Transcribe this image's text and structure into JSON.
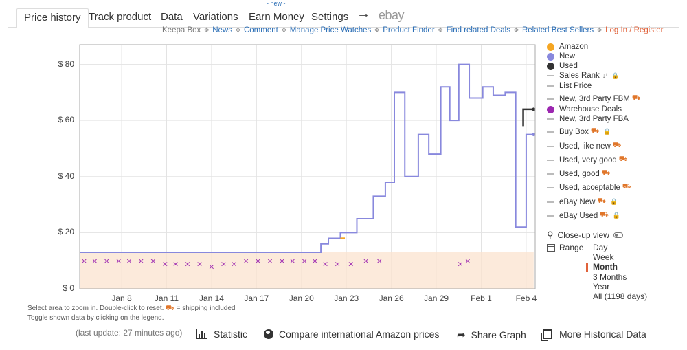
{
  "tabs": {
    "price_history": "Price history",
    "track_product": "Track product",
    "data": "Data",
    "variations": "Variations",
    "earn_money": "Earn Money",
    "new_badge": "- new -",
    "settings": "Settings",
    "ebay": "ebay"
  },
  "subnav": {
    "keepa_box": "Keepa Box",
    "news": "News",
    "comment": "Comment",
    "manage_price_watches": "Manage Price Watches",
    "product_finder": "Product Finder",
    "find_related_deals": "Find related Deals",
    "related_best_sellers": "Related Best Sellers",
    "login": "Log In / Register"
  },
  "legend": {
    "amazon": "Amazon",
    "new": "New",
    "used": "Used",
    "sales_rank": "Sales Rank",
    "list_price": "List Price",
    "new_3p_fbm": "New, 3rd Party FBM",
    "warehouse_deals": "Warehouse Deals",
    "new_3p_fba": "New, 3rd Party FBA",
    "buy_box": "Buy Box",
    "used_like_new": "Used, like new",
    "used_very_good": "Used, very good",
    "used_good": "Used, good",
    "used_acceptable": "Used, acceptable",
    "ebay_new": "eBay New",
    "ebay_used": "eBay Used",
    "colors": {
      "amazon": "#f5a623",
      "new": "#8888dd",
      "used": "#333333",
      "warehouse": "#9c27b0"
    }
  },
  "closeup": "Close-up view",
  "range": {
    "label": "Range",
    "options": [
      "Day",
      "Week",
      "Month",
      "3 Months",
      "Year",
      "All (1198 days)"
    ],
    "selected": "Month"
  },
  "hints": {
    "line1_a": "Select area to zoom in. Double-click to reset.",
    "line1_b": "= shipping included",
    "line2": "Toggle shown data by clicking on the legend."
  },
  "bottom": {
    "last_update": "(last update: 27 minutes ago)",
    "statistic": "Statistic",
    "compare": "Compare international Amazon prices",
    "share": "Share Graph",
    "more": "More Historical Data"
  },
  "chart_data": {
    "type": "line",
    "y_tick_labels": [
      "$ 80",
      "$ 60",
      "$ 40",
      "$ 20",
      "$ 0"
    ],
    "y_ticks": [
      80,
      60,
      40,
      20,
      0
    ],
    "ylim": [
      0,
      87
    ],
    "x_tick_labels": [
      "Jan 8",
      "Jan 11",
      "Jan 14",
      "Jan 17",
      "Jan 20",
      "Jan 23",
      "Jan 26",
      "Jan 29",
      "Feb 1",
      "Feb 4"
    ],
    "x_ticks": [
      8,
      11,
      14,
      17,
      20,
      23,
      26,
      29,
      32,
      35
    ],
    "xlim": [
      5.2,
      35.6
    ],
    "grid": true,
    "legend_placement": "right",
    "series": [
      {
        "name": "New",
        "color": "#8888dd",
        "x": [
          5.2,
          21.3,
          21.3,
          21.8,
          21.8,
          22.6,
          22.6,
          23.7,
          23.7,
          24.8,
          24.8,
          25.6,
          25.6,
          26.2,
          26.2,
          26.9,
          26.9,
          27.8,
          27.8,
          28.5,
          28.5,
          29.3,
          29.3,
          29.9,
          29.9,
          30.5,
          30.5,
          31.2,
          31.2,
          32.1,
          32.1,
          32.8,
          32.8,
          33.6,
          33.6,
          34.3,
          34.3,
          35.0,
          35.0,
          35.5
        ],
        "y": [
          13,
          13,
          16,
          16,
          18,
          18,
          20,
          20,
          25,
          25,
          33,
          33,
          38,
          38,
          70,
          70,
          40,
          40,
          55,
          55,
          48,
          48,
          72,
          72,
          60,
          60,
          80,
          80,
          68,
          68,
          72,
          72,
          69,
          69,
          70,
          70,
          22,
          22,
          55,
          55
        ]
      },
      {
        "name": "Used",
        "color": "#333333",
        "x": [
          34.8,
          34.8,
          35.2,
          35.5
        ],
        "y": [
          58,
          64,
          64,
          64
        ]
      },
      {
        "name": "Warehouse Deals",
        "color": "#9c27b0",
        "x": [
          5.5,
          6.2,
          7.0,
          7.8,
          8.5,
          9.3,
          10.1,
          10.9,
          11.6,
          12.4,
          13.2,
          14.0,
          14.8,
          15.5,
          16.3,
          17.1,
          17.9,
          18.7,
          19.4,
          20.2,
          20.9,
          21.6,
          22.4,
          23.3,
          24.3,
          25.2,
          30.6,
          31.1
        ],
        "y": [
          10,
          10,
          10,
          10,
          10,
          10,
          10,
          9,
          9,
          9,
          9,
          8,
          9,
          9,
          10,
          10,
          10,
          10,
          10,
          10,
          10,
          9,
          9,
          9,
          10,
          10,
          9,
          10
        ]
      },
      {
        "name": "Amazon",
        "color": "#f5a623",
        "x": [
          22.6,
          22.9
        ],
        "y": [
          18,
          18
        ]
      }
    ]
  }
}
